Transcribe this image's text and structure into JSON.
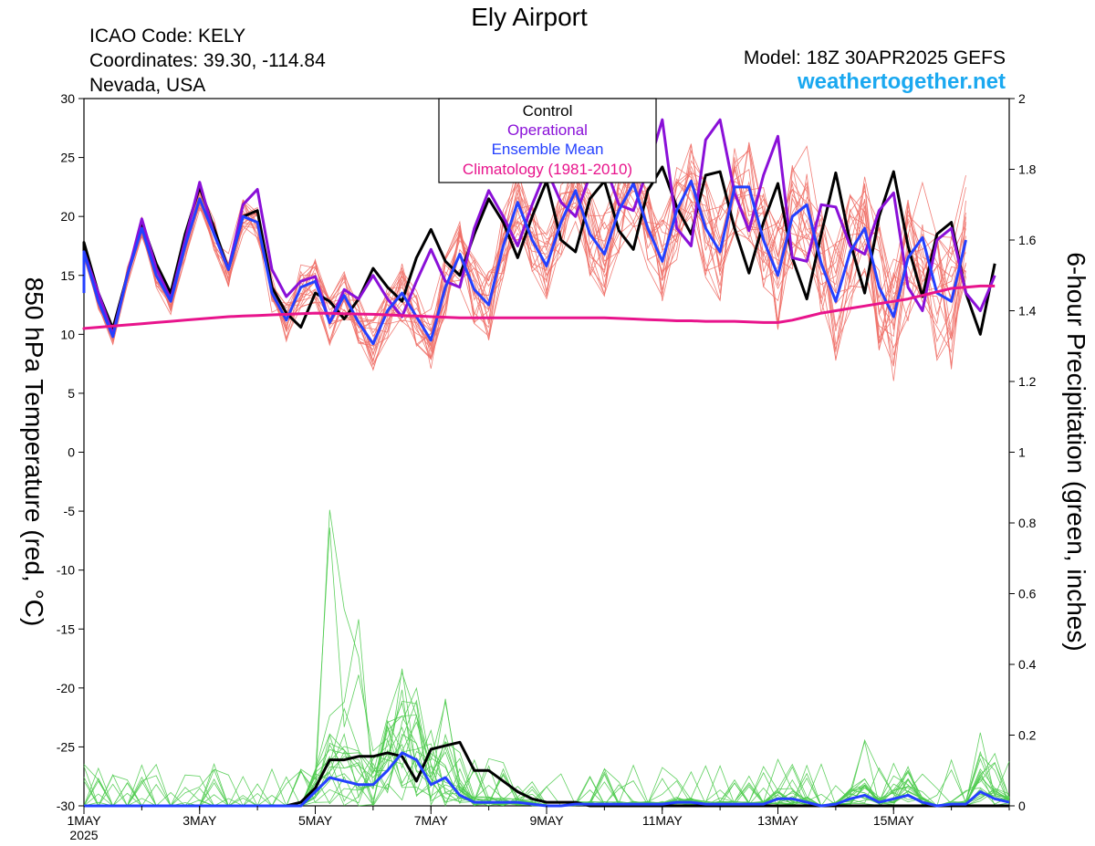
{
  "header": {
    "title": "Ely Airport",
    "icao": "ICAO Code: KELY",
    "coords": "Coordinates: 39.30, -114.84",
    "region": "Nevada, USA",
    "model": "Model: 18Z 30APR2025 GEFS",
    "site": "weathertogether.net"
  },
  "colors": {
    "control": "#000000",
    "operational": "#8a10d8",
    "ensemble_mean": "#2440ff",
    "climatology": "#e8148c",
    "members_temp": "#f07068",
    "members_precip": "#4ecb4e",
    "site_link": "#1aa8f0"
  },
  "chart_data": {
    "type": "line",
    "title": "Ely Airport",
    "ylabel_left": "850 hPa Temperature (red, °C)",
    "ylabel_right": "6-hour Precipitation (green, inches)",
    "ylim_left": [
      -30,
      30
    ],
    "ylim_right": [
      0,
      2
    ],
    "yticks_left": [
      30,
      25,
      20,
      15,
      10,
      5,
      0,
      -5,
      -10,
      -15,
      -20,
      -25,
      -30
    ],
    "yticks_right": [
      2,
      1.8,
      1.6,
      1.4,
      1.2,
      1,
      0.8,
      0.6,
      0.4,
      0.2,
      0
    ],
    "x_unit": "days since 1 May 2025 00Z",
    "xlim": [
      0,
      16
    ],
    "x_ticks": [
      {
        "x": 0,
        "label": "1MAY",
        "sub": "2025"
      },
      {
        "x": 2,
        "label": "3MAY"
      },
      {
        "x": 4,
        "label": "5MAY"
      },
      {
        "x": 6,
        "label": "7MAY"
      },
      {
        "x": 8,
        "label": "9MAY"
      },
      {
        "x": 10,
        "label": "11MAY"
      },
      {
        "x": 12,
        "label": "13MAY"
      },
      {
        "x": 14,
        "label": "15MAY"
      }
    ],
    "legend": [
      "Control",
      "Operational",
      "Ensemble Mean",
      "Climatology (1981-2010)"
    ],
    "legend_position": "top-center",
    "grid": false,
    "series": [
      {
        "name": "Control",
        "axis": "left",
        "x_start": -0.25,
        "x_step": 0.25,
        "values": [
          14.5,
          17.8,
          13.5,
          10.5,
          15,
          19.5,
          16,
          13.5,
          18.5,
          22.5,
          19,
          15.5,
          20,
          20.5,
          14,
          11.8,
          10.6,
          13.5,
          12.8,
          11.3,
          13,
          15.6,
          14,
          12.8,
          16.5,
          18.9,
          16.2,
          15,
          18.5,
          21.5,
          19.5,
          16.5,
          20,
          23,
          18,
          17,
          21.5,
          23,
          18.8,
          17.2,
          22.2,
          24.2,
          20.8,
          18.5,
          23.5,
          23.8,
          19,
          15.2,
          19.5,
          22.8,
          16.5,
          13,
          18.5,
          23.7,
          17.8,
          13.5,
          20,
          23.8,
          17.5,
          13.2,
          18.5,
          19.5,
          13.5,
          10,
          16
        ]
      },
      {
        "name": "Operational",
        "axis": "left",
        "x_start": -0.25,
        "x_step": 0.25,
        "values": [
          14,
          17,
          13.5,
          10,
          15,
          19.8,
          15.6,
          13,
          18,
          22.9,
          18.5,
          15.5,
          21,
          22.3,
          15.5,
          13.2,
          14.5,
          14.9,
          11,
          13.8,
          13,
          15,
          13,
          11.5,
          14.5,
          17.2,
          14.5,
          14,
          19,
          22.2,
          20,
          17.5,
          21,
          24,
          21.2,
          20,
          23.5,
          24.5,
          21,
          20.5,
          24,
          28.2,
          19,
          17.5,
          26.5,
          28.2,
          22,
          18.8,
          23.5,
          26.8,
          16.5,
          16.2,
          21,
          20.8,
          17.5,
          16.8,
          20.5,
          22,
          14,
          12,
          18,
          19,
          13.5,
          12,
          15
        ]
      },
      {
        "name": "Ensemble Mean",
        "axis": "left",
        "x_start": -0.25,
        "x_step": 0.25,
        "values": [
          13.5,
          17,
          12.8,
          9.8,
          15,
          19,
          15,
          12.8,
          17.5,
          21.5,
          18.5,
          15.5,
          20,
          19.5,
          13.5,
          11.2,
          14,
          14.5,
          11,
          13.3,
          11,
          9.2,
          12,
          13.5,
          11.5,
          9.5,
          14,
          16.8,
          13.8,
          12.5,
          17.5,
          21.2,
          18,
          15.8,
          19.5,
          22.2,
          18.5,
          16.8,
          20.5,
          22.8,
          19,
          16.2,
          20.5,
          23,
          19,
          17,
          22.5,
          22.5,
          18,
          15,
          20,
          21,
          16,
          12.8,
          17,
          19,
          14,
          11.5,
          16.5,
          18.2,
          13.5,
          12.8,
          18
        ]
      },
      {
        "name": "Climatology (1981-2010)",
        "axis": "left",
        "x_start": -0.25,
        "x_step": 0.25,
        "values": [
          10.4,
          10.5,
          10.6,
          10.7,
          10.8,
          10.9,
          11,
          11.1,
          11.2,
          11.3,
          11.4,
          11.5,
          11.55,
          11.6,
          11.65,
          11.7,
          11.75,
          11.8,
          11.78,
          11.75,
          11.72,
          11.7,
          11.65,
          11.6,
          11.55,
          11.5,
          11.45,
          11.4,
          11.4,
          11.4,
          11.4,
          11.4,
          11.4,
          11.4,
          11.4,
          11.4,
          11.4,
          11.4,
          11.35,
          11.3,
          11.25,
          11.2,
          11.15,
          11.15,
          11.1,
          11.1,
          11.1,
          11.05,
          11,
          11,
          11.2,
          11.5,
          11.8,
          12,
          12.2,
          12.4,
          12.6,
          12.8,
          13,
          13.3,
          13.6,
          13.9,
          14,
          14.1,
          14.1
        ]
      },
      {
        "name": "Control",
        "axis": "right",
        "x_start": 0,
        "x_step": 0.25,
        "values": [
          0,
          0,
          0,
          0,
          0,
          0,
          0,
          0,
          0,
          0,
          0,
          0,
          0,
          0,
          0,
          0.01,
          0.05,
          0.13,
          0.13,
          0.14,
          0.14,
          0.15,
          0.14,
          0.07,
          0.16,
          0.17,
          0.18,
          0.1,
          0.1,
          0.07,
          0.04,
          0.02,
          0.01,
          0.01,
          0.01,
          0,
          0,
          0,
          0,
          0,
          0,
          0,
          0,
          0,
          0,
          0,
          0,
          0,
          0,
          0,
          0,
          0,
          0,
          0,
          0,
          0,
          0,
          0,
          0,
          0,
          0,
          0,
          0,
          0,
          0,
          0,
          0
        ]
      },
      {
        "name": "Ensemble Mean",
        "axis": "right",
        "x_start": 0,
        "x_step": 0.25,
        "values": [
          0,
          0,
          0,
          0,
          0,
          0,
          0,
          0,
          0,
          0,
          0,
          0,
          0,
          0,
          0,
          0,
          0.04,
          0.08,
          0.07,
          0.06,
          0.06,
          0.1,
          0.15,
          0.13,
          0.06,
          0.08,
          0.03,
          0.01,
          0.01,
          0.01,
          0.01,
          0.005,
          0,
          0,
          0.005,
          0.005,
          0.005,
          0.005,
          0.005,
          0.005,
          0.005,
          0.01,
          0.01,
          0.005,
          0.005,
          0.005,
          0.005,
          0.005,
          0.02,
          0.02,
          0.01,
          0,
          0.005,
          0.02,
          0.03,
          0.01,
          0.02,
          0.03,
          0.01,
          0,
          0.005,
          0.005,
          0.04,
          0.02,
          0.01,
          0.01,
          0.01
        ]
      }
    ]
  }
}
